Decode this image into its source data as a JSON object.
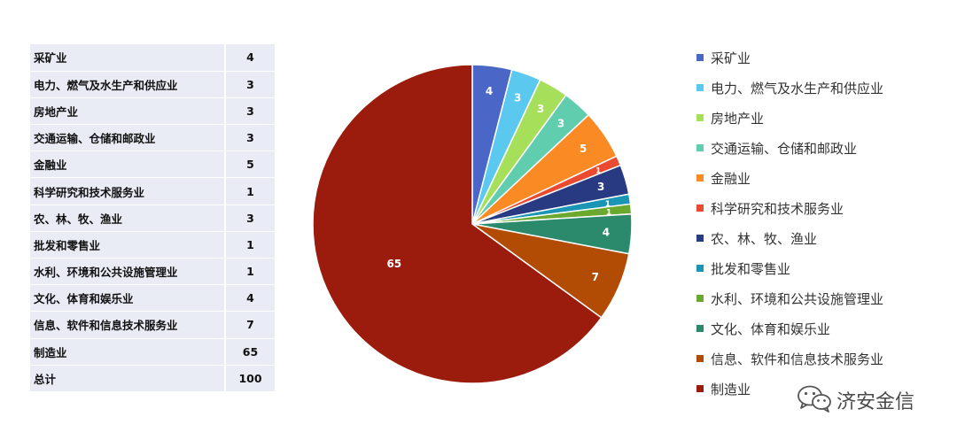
{
  "chart_data": {
    "type": "pie",
    "categories": [
      "采矿业",
      "电力、燃气及水生产和供应业",
      "房地产业",
      "交通运输、仓储和邮政业",
      "金融业",
      "科学研究和技术服务业",
      "农、林、牧、渔业",
      "批发和零售业",
      "水利、环境和公共设施管理业",
      "文化、体育和娱乐业",
      "信息、软件和信息技术服务业",
      "制造业"
    ],
    "values": [
      4,
      3,
      3,
      3,
      5,
      1,
      3,
      1,
      1,
      4,
      7,
      65
    ],
    "colors": [
      "#4a67c7",
      "#5bc8ef",
      "#a6e05a",
      "#5fcdae",
      "#f98a24",
      "#ea4a2f",
      "#283a82",
      "#1a95b5",
      "#6aa82e",
      "#2b8a6b",
      "#b24c05",
      "#9b1c0c"
    ],
    "legend": "right",
    "data_labels": true
  },
  "table": {
    "rows": [
      {
        "name": "采矿业",
        "value": "4"
      },
      {
        "name": "电力、燃气及水生产和供应业",
        "value": "3"
      },
      {
        "name": "房地产业",
        "value": "3"
      },
      {
        "name": "交通运输、仓储和邮政业",
        "value": "3"
      },
      {
        "name": "金融业",
        "value": "5"
      },
      {
        "name": "科学研究和技术服务业",
        "value": "1"
      },
      {
        "name": "农、林、牧、渔业",
        "value": "3"
      },
      {
        "name": "批发和零售业",
        "value": "1"
      },
      {
        "name": "水利、环境和公共设施管理业",
        "value": "1"
      },
      {
        "name": "文化、体育和娱乐业",
        "value": "4"
      },
      {
        "name": "信息、软件和信息技术服务业",
        "value": "7"
      },
      {
        "name": "制造业",
        "value": "65"
      }
    ],
    "total_label": "总计",
    "total_value": "100"
  },
  "watermark": {
    "icon": "wechat-icon",
    "text": "济安金信"
  }
}
